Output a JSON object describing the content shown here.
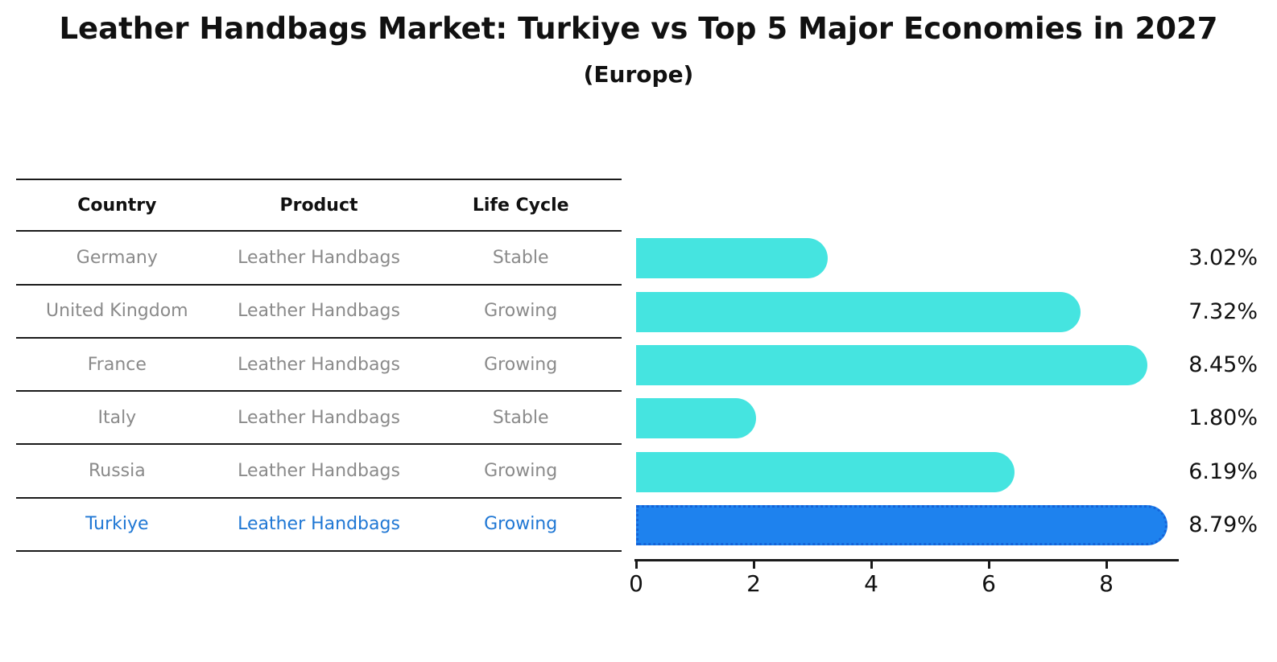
{
  "header": {
    "title": "Leather Handbags Market: Turkiye vs Top 5 Major Economies in 2027",
    "subtitle": "(Europe)"
  },
  "table": {
    "columns": [
      "Country",
      "Product",
      "Life Cycle"
    ],
    "rows": [
      {
        "country": "Germany",
        "product": "Leather Handbags",
        "life_cycle": "Stable",
        "highlight": false
      },
      {
        "country": "United Kingdom",
        "product": "Leather Handbags",
        "life_cycle": "Growing",
        "highlight": false
      },
      {
        "country": "France",
        "product": "Leather Handbags",
        "life_cycle": "Growing",
        "highlight": false
      },
      {
        "country": "Italy",
        "product": "Leather Handbags",
        "life_cycle": "Stable",
        "highlight": false
      },
      {
        "country": "Russia",
        "product": "Leather Handbags",
        "life_cycle": "Growing",
        "highlight": false
      },
      {
        "country": "Turkiye",
        "product": "Leather Handbags",
        "life_cycle": "Growing",
        "highlight": true
      }
    ]
  },
  "chart_data": {
    "type": "bar",
    "orientation": "horizontal",
    "title": "Leather Handbags Market: Turkiye vs Top 5 Major Economies in 2027",
    "subtitle": "(Europe)",
    "categories": [
      "Germany",
      "United Kingdom",
      "France",
      "Italy",
      "Russia",
      "Turkiye"
    ],
    "values": [
      3.02,
      7.32,
      8.45,
      1.8,
      6.19,
      8.79
    ],
    "value_labels": [
      "3.02%",
      "7.32%",
      "8.45%",
      "1.80%",
      "6.19%",
      "8.79%"
    ],
    "highlight_index": 5,
    "xlabel": "",
    "ylabel": "",
    "xticks": [
      "0",
      "2",
      "4",
      "6",
      "8"
    ],
    "xtick_values": [
      0,
      2,
      4,
      6,
      8
    ],
    "xlim": [
      0,
      9.2
    ],
    "grid": false,
    "legend": null,
    "colors": {
      "bar": "#45e4e0",
      "highlight_bar": "#1e82ee",
      "highlight_border": "#1463d8",
      "axis": "#1a1a1a",
      "value_label": "#111111",
      "row_text": "#8a8a8a",
      "highlight_text": "#1f77d4"
    }
  }
}
